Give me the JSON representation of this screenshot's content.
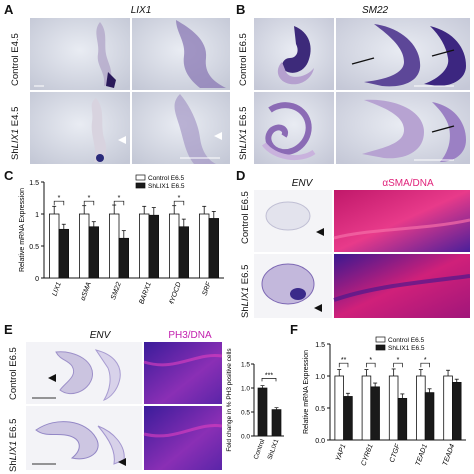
{
  "panels": {
    "A": {
      "letter": "A",
      "title": "LIX1",
      "row1": "Control E4.5",
      "row2_prefix": "Sh",
      "row2_gene": "LIX1",
      "row2_suffix": " E4.5"
    },
    "B": {
      "letter": "B",
      "title": "SM22",
      "row1": "Control E6.5",
      "row2_prefix": "Sh",
      "row2_gene": "LIX1",
      "row2_suffix": " E6.5"
    },
    "C": {
      "letter": "C"
    },
    "D": {
      "letter": "D",
      "title_env": "ENV",
      "title_sma": "αSMA/DNA",
      "row1": "Control E6.5",
      "row2_prefix": "Sh",
      "row2_gene": "LIX1",
      "row2_suffix": " E6.5"
    },
    "E": {
      "letter": "E",
      "title_env": "ENV",
      "title_ph3": "PH3/DNA",
      "row1": "Control E6.5",
      "row2_prefix": "Sh",
      "row2_gene": "LIX1",
      "row2_suffix": " E6.5"
    },
    "F": {
      "letter": "F"
    }
  },
  "chart_data": [
    {
      "id": "C",
      "type": "bar",
      "ylabel": "Relative mRNA Expression",
      "ylim": [
        0,
        1.5
      ],
      "yticks": [
        "0",
        "0.5",
        "1",
        "1.5"
      ],
      "categories": [
        "LIX1",
        "αSMA",
        "SM22",
        "BARX1",
        "MYOCD",
        "SRF"
      ],
      "series": [
        {
          "name": "Control E6.5",
          "color": "#ffffff",
          "values": [
            1.0,
            1.0,
            1.0,
            1.0,
            1.0,
            1.0
          ],
          "errors": [
            0.12,
            0.13,
            0.14,
            0.12,
            0.13,
            0.12
          ]
        },
        {
          "name": "ShLIX1 E6.5",
          "color": "#1a1a1a",
          "values": [
            0.76,
            0.8,
            0.62,
            0.98,
            0.8,
            0.93
          ],
          "errors": [
            0.08,
            0.08,
            0.12,
            0.12,
            0.12,
            0.11
          ]
        }
      ],
      "significance": [
        "*",
        "*",
        "*",
        "",
        "*",
        ""
      ],
      "legend": [
        "Control E6.5",
        "ShLIX1 E6.5"
      ]
    },
    {
      "id": "E-inset",
      "type": "bar",
      "ylabel": "Fold change in % PH3 positive cells",
      "ylim": [
        0,
        1.5
      ],
      "yticks": [
        "0.0",
        "0.5",
        "1.0",
        "1.5"
      ],
      "categories": [
        "Control",
        "ShLIX1"
      ],
      "values": [
        1.0,
        0.55
      ],
      "errors": [
        0.05,
        0.04
      ],
      "colors": [
        "#1a1a1a",
        "#1a1a1a"
      ],
      "significance": "***"
    },
    {
      "id": "F",
      "type": "bar",
      "ylabel": "Relative mRNA Expression",
      "ylim": [
        0,
        1.5
      ],
      "yticks": [
        "0.0",
        "0.5",
        "1.0",
        "1.5"
      ],
      "categories": [
        "YAP1",
        "CYR61",
        "CTGF",
        "TEAD1",
        "TEAD4"
      ],
      "series": [
        {
          "name": "Control E6.5",
          "color": "#ffffff",
          "values": [
            1.0,
            1.0,
            1.0,
            1.0,
            1.0
          ],
          "errors": [
            0.1,
            0.1,
            0.11,
            0.1,
            0.09
          ]
        },
        {
          "name": "ShLIX1 E6.5",
          "color": "#1a1a1a",
          "values": [
            0.68,
            0.83,
            0.65,
            0.74,
            0.9
          ],
          "errors": [
            0.05,
            0.06,
            0.07,
            0.06,
            0.05
          ]
        }
      ],
      "significance": [
        "**",
        "*",
        "*",
        "*",
        ""
      ],
      "legend": [
        "Control E6.5",
        "ShLIX1 E6.5"
      ]
    }
  ]
}
